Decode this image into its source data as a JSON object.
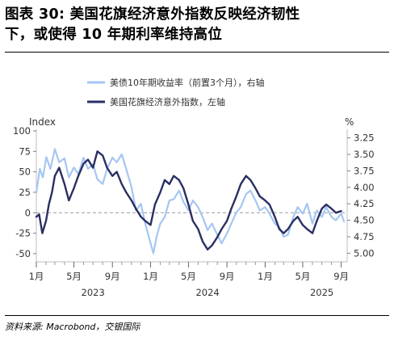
{
  "title": {
    "line1": "图表 30: 美国花旗经济意外指数反映经济韧性",
    "line2": "下，或使得 10 年期利率维持高位"
  },
  "source": "资料来源: Macrobond，交银国际",
  "colors": {
    "bond_yield": "#a6c6f2",
    "surprise_index": "#2a2f62",
    "zero_line": "#999999",
    "frame": "#bfbfbf"
  },
  "chart_data": {
    "type": "line",
    "left_axis": {
      "label": "Index",
      "range": [
        -60,
        102
      ],
      "ticks": [
        100,
        75,
        50,
        25,
        0,
        -25,
        -50
      ],
      "tick_labels": [
        "100",
        "75",
        "50",
        "25",
        "0",
        "-25",
        "-50"
      ]
    },
    "right_axis": {
      "label": "%",
      "inverted": true,
      "range": [
        3.12,
        5.13
      ],
      "ticks": [
        3.25,
        3.5,
        3.75,
        4.0,
        4.25,
        4.5,
        4.75,
        5.0
      ],
      "tick_labels": [
        "3.25",
        "3.50",
        "3.75",
        "4.00",
        "4.25",
        "4.50",
        "4.75",
        "5.00"
      ]
    },
    "x_axis": {
      "range": [
        "2023-01-01",
        "2025-09-20"
      ],
      "month_ticks": [
        "2023-01-01",
        "2023-05-01",
        "2023-09-01",
        "2024-01-01",
        "2024-05-01",
        "2024-09-01",
        "2025-01-01",
        "2025-05-01",
        "2025-09-01"
      ],
      "month_labels": [
        "1月",
        "5月",
        "9月",
        "1月",
        "5月",
        "9月",
        "1月",
        "5月",
        "9月"
      ],
      "minor_ticks": [
        "2023-02-01",
        "2023-03-01",
        "2023-04-01",
        "2023-06-01",
        "2023-07-01",
        "2023-08-01",
        "2023-10-01",
        "2023-11-01",
        "2023-12-01",
        "2024-02-01",
        "2024-03-01",
        "2024-04-01",
        "2024-06-01",
        "2024-07-01",
        "2024-08-01",
        "2024-10-01",
        "2024-11-01",
        "2024-12-01",
        "2025-02-01",
        "2025-03-01",
        "2025-04-01",
        "2025-06-01",
        "2025-07-01",
        "2025-08-01"
      ],
      "year_labels": [
        {
          "label": "2023",
          "at": "2023-07-01"
        },
        {
          "label": "2024",
          "at": "2024-07-01"
        },
        {
          "label": "2025",
          "at": "2025-07-01"
        }
      ]
    },
    "zero_line": {
      "value": 0,
      "style": "dashed"
    },
    "legend": {
      "placement": "top",
      "entries": [
        {
          "name": "美债10年期收益率（前置3个月），右轴",
          "series": "bond"
        },
        {
          "name": "美国花旗经济意外指数，左轴",
          "series": "surprise"
        }
      ]
    },
    "series": [
      {
        "key": "bond",
        "name": "美债10年期收益率（前置3个月），右轴",
        "axis": "right",
        "points": [
          [
            "2023-01-01",
            4.08
          ],
          [
            "2023-01-12",
            3.72
          ],
          [
            "2023-01-22",
            3.85
          ],
          [
            "2023-02-02",
            3.54
          ],
          [
            "2023-02-15",
            3.72
          ],
          [
            "2023-03-01",
            3.42
          ],
          [
            "2023-03-15",
            3.62
          ],
          [
            "2023-04-01",
            3.56
          ],
          [
            "2023-04-15",
            3.85
          ],
          [
            "2023-05-01",
            3.7
          ],
          [
            "2023-05-15",
            3.8
          ],
          [
            "2023-06-01",
            3.55
          ],
          [
            "2023-06-15",
            3.72
          ],
          [
            "2023-07-01",
            3.65
          ],
          [
            "2023-07-15",
            3.88
          ],
          [
            "2023-08-01",
            3.95
          ],
          [
            "2023-08-15",
            3.72
          ],
          [
            "2023-09-01",
            3.55
          ],
          [
            "2023-09-15",
            3.62
          ],
          [
            "2023-10-01",
            3.5
          ],
          [
            "2023-10-15",
            3.72
          ],
          [
            "2023-11-01",
            4.0
          ],
          [
            "2023-11-15",
            4.35
          ],
          [
            "2023-12-01",
            4.25
          ],
          [
            "2023-12-15",
            4.55
          ],
          [
            "2024-01-01",
            4.85
          ],
          [
            "2024-01-10",
            5.0
          ],
          [
            "2024-01-20",
            4.75
          ],
          [
            "2024-02-01",
            4.55
          ],
          [
            "2024-02-15",
            4.45
          ],
          [
            "2024-03-01",
            4.2
          ],
          [
            "2024-03-15",
            4.18
          ],
          [
            "2024-04-01",
            4.05
          ],
          [
            "2024-04-15",
            4.22
          ],
          [
            "2024-05-01",
            4.35
          ],
          [
            "2024-05-15",
            4.2
          ],
          [
            "2024-06-01",
            4.3
          ],
          [
            "2024-06-15",
            4.45
          ],
          [
            "2024-07-01",
            4.65
          ],
          [
            "2024-07-15",
            4.55
          ],
          [
            "2024-08-01",
            4.72
          ],
          [
            "2024-08-15",
            4.85
          ],
          [
            "2024-09-01",
            4.7
          ],
          [
            "2024-09-15",
            4.55
          ],
          [
            "2024-10-01",
            4.38
          ],
          [
            "2024-10-15",
            4.3
          ],
          [
            "2024-11-01",
            4.1
          ],
          [
            "2024-11-15",
            4.05
          ],
          [
            "2024-12-01",
            4.2
          ],
          [
            "2024-12-15",
            4.35
          ],
          [
            "2025-01-01",
            4.3
          ],
          [
            "2025-01-15",
            4.4
          ],
          [
            "2025-02-01",
            4.55
          ],
          [
            "2025-02-15",
            4.6
          ],
          [
            "2025-03-01",
            4.75
          ],
          [
            "2025-03-15",
            4.72
          ],
          [
            "2025-04-01",
            4.45
          ],
          [
            "2025-04-15",
            4.3
          ],
          [
            "2025-05-01",
            4.4
          ],
          [
            "2025-05-15",
            4.25
          ],
          [
            "2025-06-01",
            4.55
          ],
          [
            "2025-06-15",
            4.35
          ],
          [
            "2025-07-01",
            4.45
          ],
          [
            "2025-07-15",
            4.3
          ],
          [
            "2025-08-01",
            4.45
          ],
          [
            "2025-08-15",
            4.5
          ],
          [
            "2025-09-01",
            4.4
          ],
          [
            "2025-09-10",
            4.52
          ]
        ]
      },
      {
        "key": "surprise",
        "name": "美国花旗经济意外指数，左轴",
        "axis": "left",
        "points": [
          [
            "2023-01-01",
            -5
          ],
          [
            "2023-01-10",
            -2
          ],
          [
            "2023-01-20",
            -25
          ],
          [
            "2023-02-01",
            -10
          ],
          [
            "2023-02-10",
            10
          ],
          [
            "2023-02-20",
            25
          ],
          [
            "2023-03-01",
            45
          ],
          [
            "2023-03-15",
            55
          ],
          [
            "2023-04-01",
            35
          ],
          [
            "2023-04-15",
            15
          ],
          [
            "2023-05-01",
            30
          ],
          [
            "2023-05-15",
            45
          ],
          [
            "2023-06-01",
            60
          ],
          [
            "2023-06-15",
            65
          ],
          [
            "2023-07-01",
            55
          ],
          [
            "2023-07-15",
            75
          ],
          [
            "2023-08-01",
            70
          ],
          [
            "2023-08-15",
            55
          ],
          [
            "2023-09-01",
            45
          ],
          [
            "2023-09-15",
            50
          ],
          [
            "2023-10-01",
            35
          ],
          [
            "2023-10-15",
            25
          ],
          [
            "2023-11-01",
            15
          ],
          [
            "2023-11-15",
            5
          ],
          [
            "2023-12-01",
            -5
          ],
          [
            "2023-12-15",
            -10
          ],
          [
            "2024-01-01",
            -15
          ],
          [
            "2024-01-15",
            10
          ],
          [
            "2024-02-01",
            25
          ],
          [
            "2024-02-15",
            40
          ],
          [
            "2024-03-01",
            35
          ],
          [
            "2024-03-15",
            45
          ],
          [
            "2024-04-01",
            40
          ],
          [
            "2024-04-15",
            30
          ],
          [
            "2024-05-01",
            10
          ],
          [
            "2024-05-15",
            -10
          ],
          [
            "2024-06-01",
            -20
          ],
          [
            "2024-06-15",
            -35
          ],
          [
            "2024-07-01",
            -45
          ],
          [
            "2024-07-15",
            -40
          ],
          [
            "2024-08-01",
            -30
          ],
          [
            "2024-08-15",
            -20
          ],
          [
            "2024-09-01",
            -10
          ],
          [
            "2024-09-15",
            5
          ],
          [
            "2024-10-01",
            20
          ],
          [
            "2024-10-15",
            35
          ],
          [
            "2024-11-01",
            45
          ],
          [
            "2024-11-15",
            40
          ],
          [
            "2024-12-01",
            30
          ],
          [
            "2024-12-15",
            20
          ],
          [
            "2025-01-01",
            15
          ],
          [
            "2025-01-15",
            10
          ],
          [
            "2025-02-01",
            -5
          ],
          [
            "2025-02-15",
            -20
          ],
          [
            "2025-03-01",
            -25
          ],
          [
            "2025-03-15",
            -20
          ],
          [
            "2025-04-01",
            -10
          ],
          [
            "2025-04-15",
            -5
          ],
          [
            "2025-05-01",
            -15
          ],
          [
            "2025-05-15",
            -20
          ],
          [
            "2025-06-01",
            -25
          ],
          [
            "2025-06-15",
            -10
          ],
          [
            "2025-07-01",
            5
          ],
          [
            "2025-07-15",
            10
          ],
          [
            "2025-08-01",
            5
          ],
          [
            "2025-08-15",
            0
          ],
          [
            "2025-09-01",
            2
          ]
        ]
      }
    ]
  }
}
